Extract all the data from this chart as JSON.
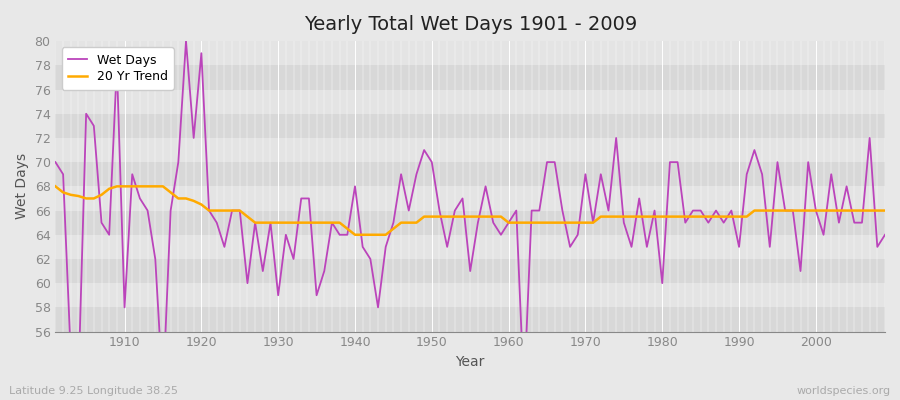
{
  "title": "Yearly Total Wet Days 1901 - 2009",
  "xlabel": "Year",
  "ylabel": "Wet Days",
  "subtitle_left": "Latitude 9.25 Longitude 38.25",
  "subtitle_right": "worldspecies.org",
  "ylim": [
    56,
    80
  ],
  "yticks": [
    56,
    58,
    60,
    62,
    64,
    66,
    68,
    70,
    72,
    74,
    76,
    78,
    80
  ],
  "xlim": [
    1901,
    2009
  ],
  "line_color": "#bb44bb",
  "trend_color": "#ffaa00",
  "bg_color": "#e8e8e8",
  "plot_bg_color": "#e0e0e0",
  "legend_wet": "Wet Days",
  "legend_trend": "20 Yr Trend",
  "wet_days": [
    70,
    69,
    54,
    52,
    74,
    73,
    65,
    64,
    78,
    58,
    69,
    67,
    66,
    62,
    51,
    66,
    70,
    80,
    72,
    79,
    66,
    65,
    63,
    66,
    66,
    60,
    65,
    61,
    65,
    59,
    64,
    62,
    67,
    67,
    59,
    61,
    65,
    64,
    64,
    68,
    63,
    62,
    58,
    63,
    65,
    69,
    66,
    69,
    71,
    70,
    66,
    63,
    66,
    67,
    61,
    65,
    68,
    65,
    64,
    65,
    66,
    51,
    66,
    66,
    70,
    70,
    66,
    63,
    64,
    69,
    65,
    69,
    66,
    72,
    65,
    63,
    67,
    63,
    66,
    60,
    70,
    70,
    65,
    66,
    66,
    65,
    66,
    65,
    66,
    63,
    69,
    71,
    69,
    63,
    70,
    66,
    66,
    61,
    70,
    66,
    64,
    69,
    65,
    68,
    65,
    65,
    72,
    63,
    64
  ],
  "trend_days": [
    68,
    67.5,
    67.3,
    67.2,
    67.0,
    67.0,
    67.3,
    67.8,
    68.0,
    68.0,
    68.0,
    68.0,
    68.0,
    68.0,
    68.0,
    67.5,
    67.0,
    67.0,
    66.8,
    66.5,
    66.0,
    66.0,
    66.0,
    66.0,
    66.0,
    65.5,
    65.0,
    65.0,
    65.0,
    65.0,
    65.0,
    65.0,
    65.0,
    65.0,
    65.0,
    65.0,
    65.0,
    65.0,
    64.5,
    64.0,
    64.0,
    64.0,
    64.0,
    64.0,
    64.5,
    65.0,
    65.0,
    65.0,
    65.5,
    65.5,
    65.5,
    65.5,
    65.5,
    65.5,
    65.5,
    65.5,
    65.5,
    65.5,
    65.5,
    65.0,
    65.0,
    65.0,
    65.0,
    65.0,
    65.0,
    65.0,
    65.0,
    65.0,
    65.0,
    65.0,
    65.0,
    65.5,
    65.5,
    65.5,
    65.5,
    65.5,
    65.5,
    65.5,
    65.5,
    65.5,
    65.5,
    65.5,
    65.5,
    65.5,
    65.5,
    65.5,
    65.5,
    65.5,
    65.5,
    65.5,
    65.5,
    66.0,
    66.0,
    66.0,
    66.0,
    66.0,
    66.0,
    66.0,
    66.0,
    66.0,
    66.0,
    66.0,
    66.0,
    66.0,
    66.0,
    66.0,
    66.0,
    66.0,
    66.0
  ]
}
